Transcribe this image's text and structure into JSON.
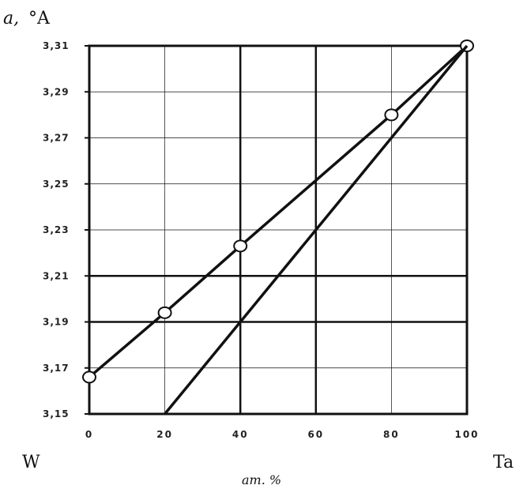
{
  "chart_data": {
    "type": "line",
    "ylabel_var": "a,",
    "ylabel_unit": "°A",
    "xlabel": "ат. %",
    "left_end_label": "W",
    "right_end_label": "Ta",
    "x_ticks": [
      "0",
      "20",
      "40",
      "60",
      "80",
      "100"
    ],
    "y_ticks": [
      "3,15",
      "3,17",
      "3,19",
      "3,21",
      "3,23",
      "3,25",
      "3,27",
      "3,29",
      "3,31"
    ],
    "xlim": [
      0,
      100
    ],
    "ylim": [
      3.15,
      3.31
    ],
    "grid": true,
    "series": [
      {
        "points": [
          [
            0,
            3.166
          ],
          [
            20,
            3.194
          ],
          [
            40,
            3.223
          ],
          [
            80,
            3.28
          ],
          [
            100,
            3.31
          ]
        ],
        "markers": true
      },
      {
        "points": [
          [
            20,
            3.15
          ],
          [
            100,
            3.31
          ]
        ],
        "markers": false
      }
    ]
  }
}
